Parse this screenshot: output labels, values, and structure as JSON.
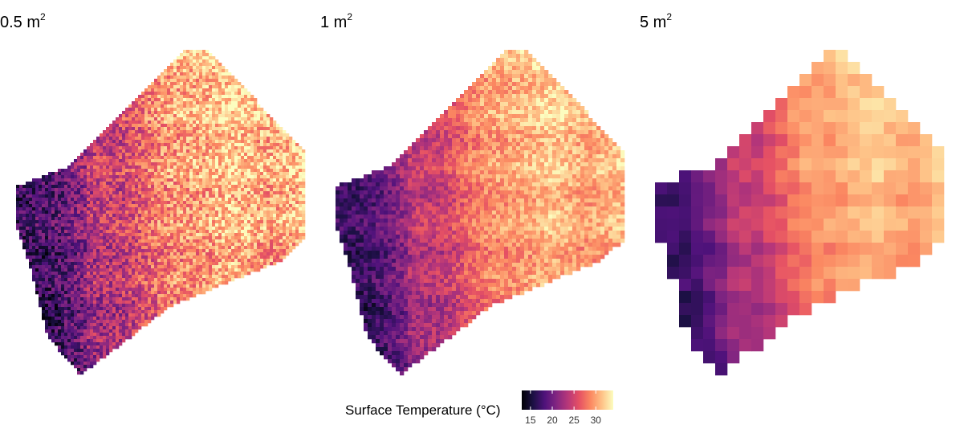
{
  "chart_data": {
    "type": "heatmap",
    "colormap": "magma",
    "panels": [
      {
        "title": "0.5 m",
        "title_superscript": "2",
        "resolution_m2": 0.5
      },
      {
        "title": "1 m",
        "title_superscript": "2",
        "resolution_m2": 1
      },
      {
        "title": "5 m",
        "title_superscript": "2",
        "resolution_m2": 5
      }
    ],
    "legend": {
      "title": "Surface Temperature (°C)",
      "ticks": [
        15,
        20,
        25,
        30
      ],
      "tick_labels": [
        "15",
        "20",
        "25",
        "30"
      ],
      "range": [
        13,
        34
      ],
      "position": "bottom"
    },
    "colors": {
      "magma_stops": [
        "#000004",
        "#1c1044",
        "#4f127b",
        "#812581",
        "#b5367a",
        "#e55064",
        "#fb8761",
        "#fec287",
        "#fcfdbf"
      ]
    }
  }
}
